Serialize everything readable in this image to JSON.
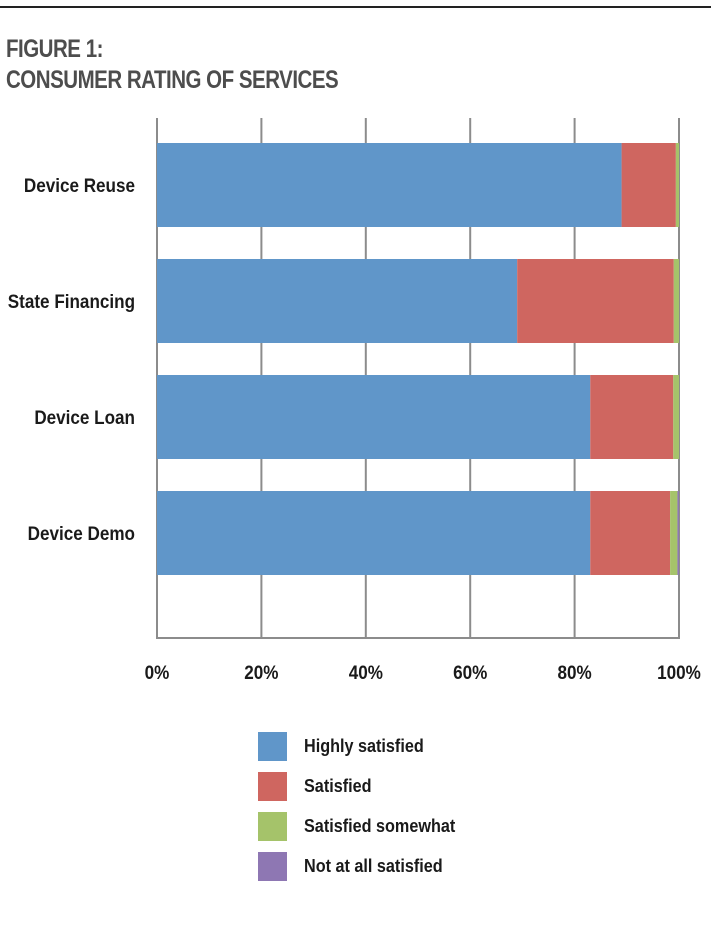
{
  "figure": {
    "label": "FIGURE 1:",
    "title": "CONSUMER RATING OF SERVICES"
  },
  "colors": {
    "highly_satisfied": "#6096c9",
    "satisfied": "#cf6660",
    "satisfied_somewhat": "#a5c36a",
    "not_at_all_satisfied": "#8e77b3",
    "gridline": "#8c8c8c",
    "text": "#1a1a1a"
  },
  "chart_data": {
    "type": "bar",
    "orientation": "horizontal",
    "stacked": true,
    "categories": [
      "Device Reuse",
      "State Financing",
      "Device Loan",
      "Device Demo"
    ],
    "series": [
      {
        "name": "Highly satisfied",
        "values": [
          89,
          69,
          83,
          83
        ]
      },
      {
        "name": "Satisfied",
        "values": [
          10.4,
          30,
          15.9,
          15.3
        ]
      },
      {
        "name": "Satisfied somewhat",
        "values": [
          0.6,
          1,
          1.1,
          1.4
        ]
      },
      {
        "name": "Not at all satisfied",
        "values": [
          0,
          0,
          0,
          0.3
        ]
      }
    ],
    "xlim": [
      0,
      100
    ],
    "xticks": [
      "0%",
      "20%",
      "40%",
      "60%",
      "80%",
      "100%"
    ],
    "grid": "vertical",
    "legend_position": "bottom"
  }
}
